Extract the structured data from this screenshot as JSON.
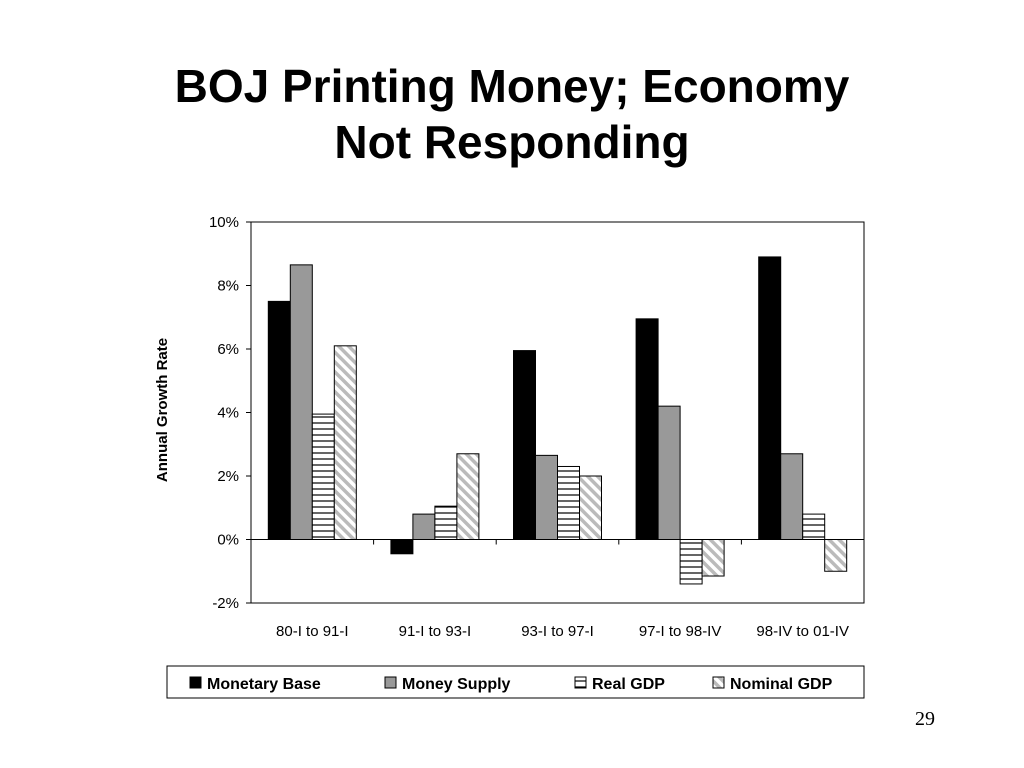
{
  "slide": {
    "title_line1": "BOJ Printing Money; Economy",
    "title_line2": "Not Responding",
    "page_number": "29"
  },
  "chart_data": {
    "type": "bar",
    "title": "",
    "xlabel": "",
    "ylabel": "Annual Growth Rate",
    "ylim": [
      -2,
      10
    ],
    "yticks": [
      -2,
      0,
      2,
      4,
      6,
      8,
      10
    ],
    "ytick_labels": [
      "-2%",
      "0%",
      "2%",
      "4%",
      "6%",
      "8%",
      "10%"
    ],
    "grid": false,
    "legend_position": "bottom",
    "categories": [
      "80-I to 91-I",
      "91-I to 93-I",
      "93-I to 97-I",
      "97-I to 98-IV",
      "98-IV to 01-IV"
    ],
    "series": [
      {
        "name": "Monetary Base",
        "fill": "solid",
        "color": "#000000",
        "values": [
          7.5,
          -0.45,
          5.95,
          6.95,
          8.9
        ]
      },
      {
        "name": "Money Supply",
        "fill": "solid",
        "color": "#999999",
        "values": [
          8.65,
          0.8,
          2.65,
          4.2,
          2.7
        ]
      },
      {
        "name": "Real GDP",
        "fill": "horizontal-stripes",
        "color": "#ffffff",
        "values": [
          3.95,
          1.05,
          2.3,
          -1.4,
          0.8
        ]
      },
      {
        "name": "Nominal GDP",
        "fill": "diagonal-stripes",
        "color": "#ffffff",
        "values": [
          6.1,
          2.7,
          2.0,
          -1.15,
          -1.0
        ]
      }
    ]
  }
}
